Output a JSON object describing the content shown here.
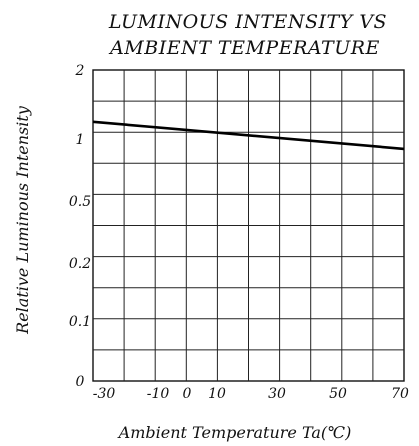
{
  "chart_data": {
    "type": "line",
    "title_lines": [
      "LUMINOUS INTENSITY VS",
      "AMBIENT TEMPERATURE"
    ],
    "xlabel": "Ambient Temperature Ta(℃)",
    "ylabel": "Relative Luminous Intensity",
    "x_ticks": [
      "-30",
      "-10",
      "0",
      "10",
      "30",
      "50",
      "70"
    ],
    "y_ticks": [
      "0",
      "0.1",
      "0.2",
      "0.5",
      "1",
      "2"
    ],
    "xlim": [
      -30,
      70
    ],
    "grid": true,
    "series": [
      {
        "x": [
          -30,
          70
        ],
        "y": [
          1.25,
          0.92
        ]
      }
    ]
  }
}
